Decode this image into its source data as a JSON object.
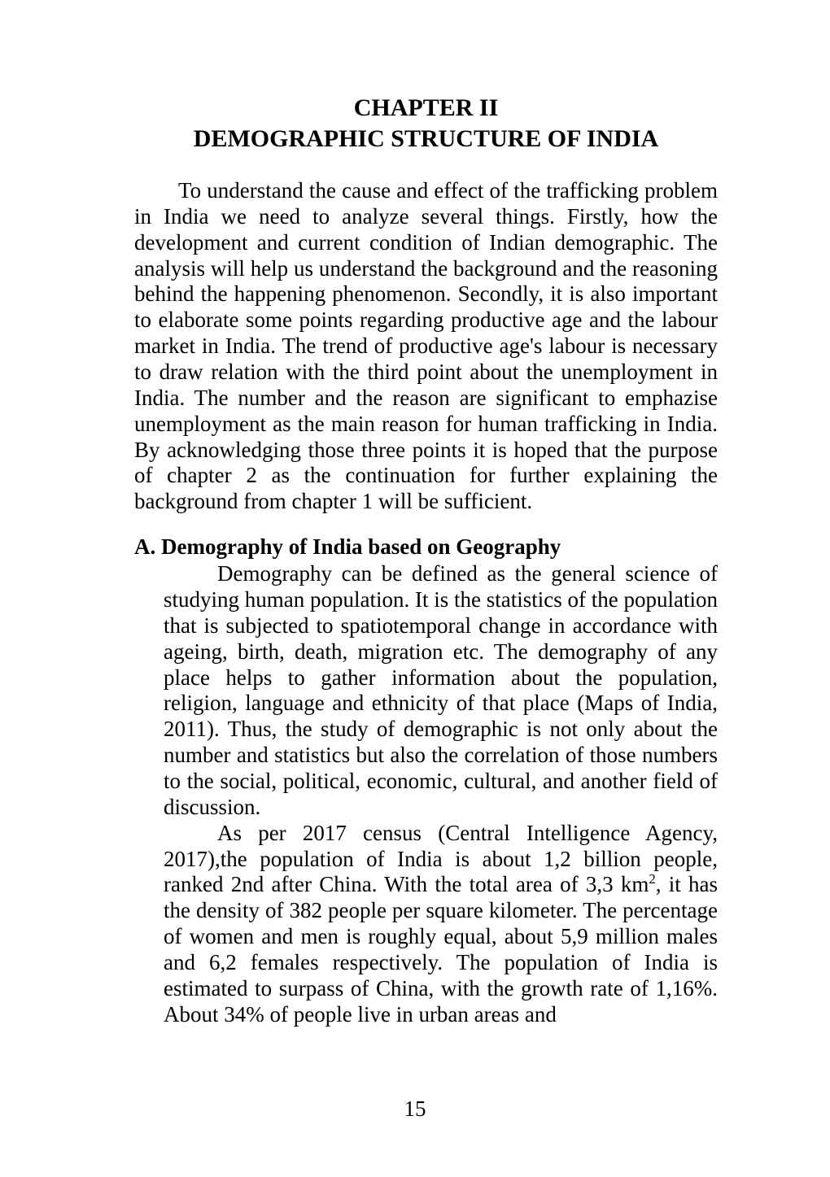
{
  "typography": {
    "font_family": "Times New Roman",
    "body_font_size_pt": 20,
    "heading_font_size_pt": 22,
    "text_color": "#000000",
    "background_color": "#ffffff",
    "line_height": 1.18
  },
  "chapter": {
    "line1": "CHAPTER II",
    "line2": "DEMOGRAPHIC STRUCTURE OF INDIA"
  },
  "intro_paragraph": "To understand the cause and effect of the trafficking problem in India we need to analyze several things. Firstly, how the development and current condition of Indian demographic. The analysis will help us understand the background and the reasoning behind the happening phenomenon. Secondly, it is also important to elaborate some points regarding productive age and the labour market in India. The trend of productive age's labour is necessary to draw relation with the third point about the unemployment in India. The number and the reason are significant to emphazise unemployment as the main reason for human trafficking in India. By acknowledging those three points it is hoped that the purpose of chapter 2 as the continuation for further explaining the background from chapter 1 will be sufficient.",
  "section_a": {
    "heading": "A. Demography of India based on Geography",
    "para1": "Demography can be defined as the general science of studying human population. It is the statistics of the population that is subjected to spatiotemporal change in accordance with ageing, birth, death, migration etc. The demography of any place helps to gather information about the population, religion, language and ethnicity of that place (Maps of India, 2011). Thus, the study of demographic is not only about the number and statistics but also the correlation of those numbers to the social, political, economic, cultural, and another field of discussion.",
    "para2_pre": "As per 2017 census (Central Intelligence Agency, 2017),the population of India is about 1,2 billion people, ranked 2nd after China. With the total area of 3,3 km",
    "para2_sup": "2",
    "para2_post": ", it has the density of 382 people per square kilometer. The percentage of women and men is roughly equal, about 5,9 million males and 6,2 females respectively. The population of India is estimated to surpass of China, with the growth rate of 1,16%. About 34% of people live in urban areas and"
  },
  "page_number": "15"
}
